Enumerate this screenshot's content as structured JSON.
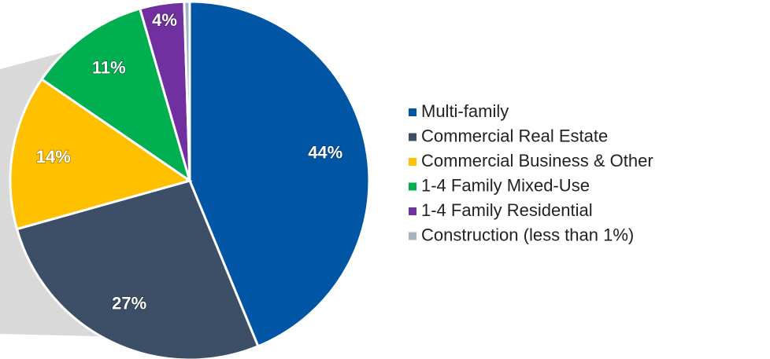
{
  "chart_data": {
    "type": "pie",
    "categories": [
      "Multi-family",
      "Commercial Real Estate",
      "Commercial Business & Other",
      "1-4 Family Mixed-Use",
      "1-4 Family Residential",
      "Construction (less than 1%)"
    ],
    "values": [
      44,
      27,
      14,
      11,
      4,
      0.5
    ],
    "value_labels": [
      "44%",
      "27%",
      "14%",
      "11%",
      "4%",
      null
    ],
    "colors": [
      "#0055a4",
      "#3d4f66",
      "#ffc000",
      "#00b050",
      "#7030a0",
      "#a6b4c2"
    ],
    "legend": "right"
  }
}
